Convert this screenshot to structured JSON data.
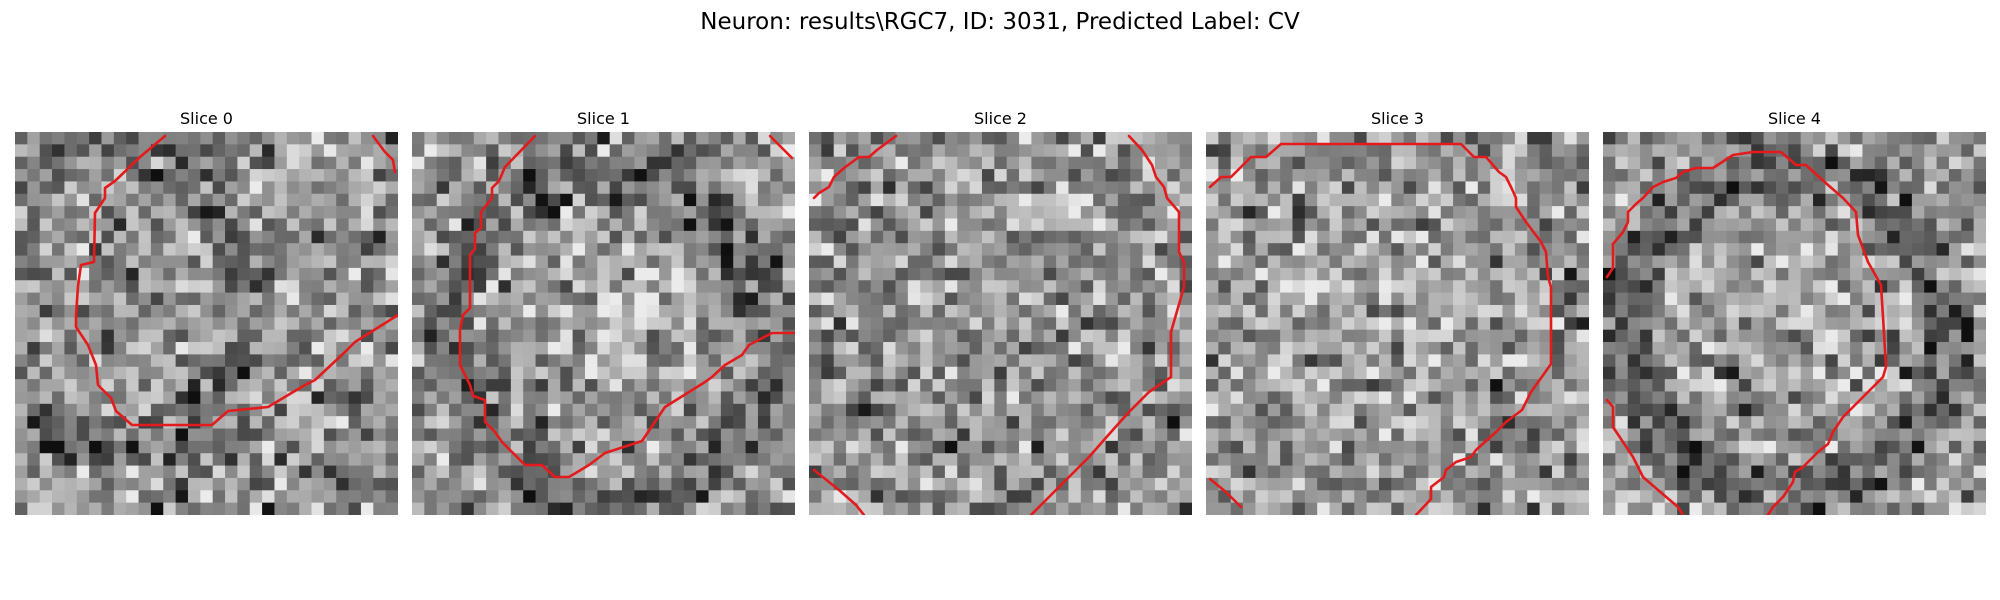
{
  "figure": {
    "title": "Neuron: results\\RGC7, ID: 3031, Predicted Label: CV"
  },
  "contour_color": "#e41a1c",
  "slices": [
    {
      "label": "Slice 0",
      "seed": 11,
      "center": [
        0.22,
        0.42
      ],
      "radius": 0.38,
      "bright_center": false,
      "dark_ring": true
    },
    {
      "label": "Slice 1",
      "seed": 23,
      "center": [
        0.5,
        0.52
      ],
      "radius": 0.42,
      "bright_center": true,
      "dark_ring": true
    },
    {
      "label": "Slice 2",
      "seed": 37,
      "center": [
        0.5,
        0.45
      ],
      "radius": 0.45,
      "bright_center": false,
      "dark_ring": false
    },
    {
      "label": "Slice 3",
      "seed": 41,
      "center": [
        0.48,
        0.45
      ],
      "radius": 0.45,
      "bright_center": true,
      "dark_ring": false
    },
    {
      "label": "Slice 4",
      "seed": 53,
      "center": [
        0.46,
        0.5
      ],
      "radius": 0.42,
      "bright_center": true,
      "dark_ring": true
    }
  ]
}
